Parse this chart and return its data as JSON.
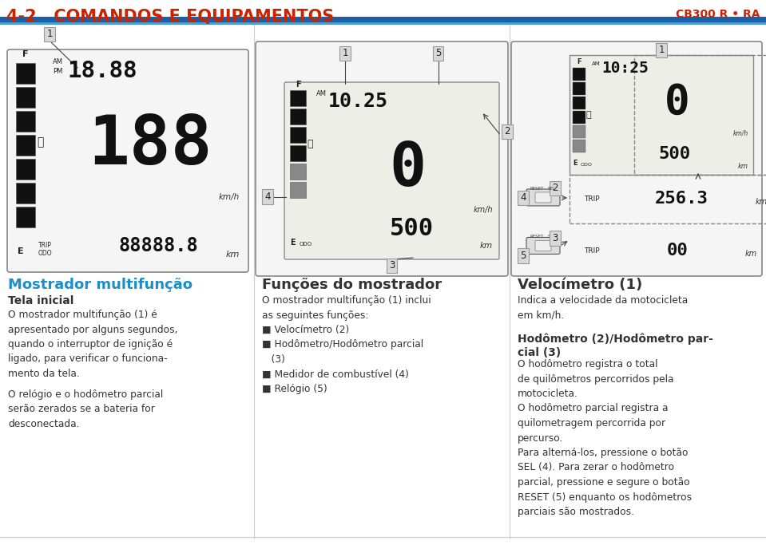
{
  "bg_color": "#ffffff",
  "header_title": "4-2   COMANDOS E EQUIPAMENTOS",
  "header_title_color": "#cc2200",
  "header_right": "CB300 R • RA",
  "header_right_color": "#cc2200",
  "header_bar_color1": "#1a5fa8",
  "header_bar_color2": "#4a9fd4",
  "col1_heading": "Mostrador multifunção",
  "col1_heading_color": "#1a90c8",
  "col1_subheading": "Tela inicial",
  "col2_heading": "Funções do mostrador",
  "col3_heading": "Velocímetro (1)",
  "col3_heading2": "Hodômetro (2)/Hodômetro par-\ncial (3)",
  "text_color": "#333333",
  "panel_border_color": "#aaaaaa",
  "label_bg": "#d8d8d8",
  "label_border": "#999999",
  "display_bg": "#f0f0f0",
  "display_dark": "#111111",
  "display_light": "#cccccc"
}
